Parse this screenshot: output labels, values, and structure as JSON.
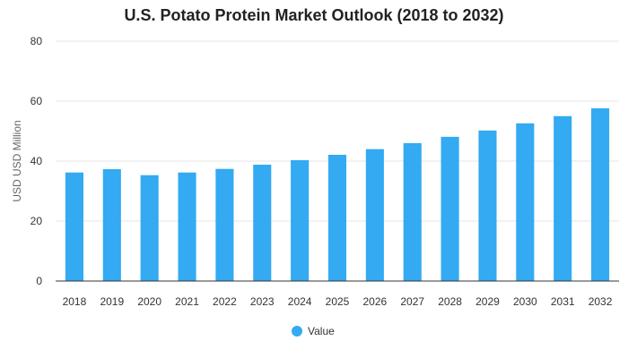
{
  "chart_data": {
    "type": "bar",
    "title": "U.S. Potato Protein Market Outlook (2018 to 2032)",
    "xlabel": "",
    "ylabel": "USD USD Million",
    "ylim": [
      0,
      80
    ],
    "yticks": [
      0,
      20,
      40,
      60,
      80
    ],
    "grid": true,
    "legend_position": "bottom",
    "bar_color": "#33aaf2",
    "categories": [
      "2018",
      "2019",
      "2020",
      "2021",
      "2022",
      "2023",
      "2024",
      "2025",
      "2026",
      "2027",
      "2028",
      "2029",
      "2030",
      "2031",
      "2032"
    ],
    "series": [
      {
        "name": "Value",
        "values": [
          36.2,
          37.3,
          35.3,
          36.2,
          37.4,
          38.8,
          40.3,
          42.1,
          44.0,
          46.0,
          48.1,
          50.2,
          52.6,
          55.0,
          57.6
        ]
      }
    ]
  }
}
